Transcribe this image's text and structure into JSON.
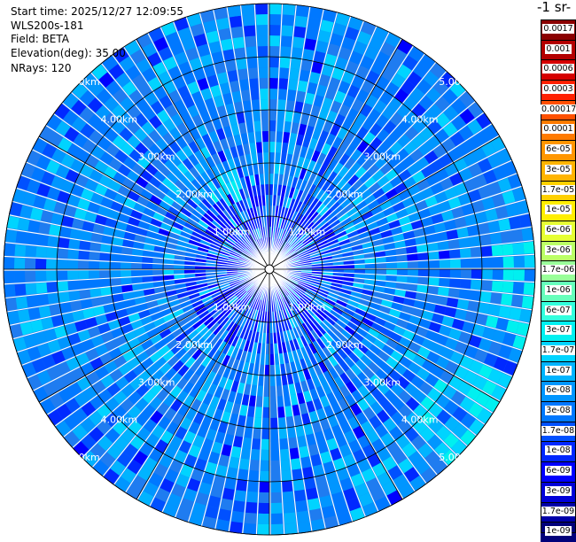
{
  "header": {
    "start_time": "Start time: 2025/12/27 12:09:55",
    "instrument": "WLS200s-181",
    "field": "Field: BETA",
    "elevation": "Elevation(deg): 35.00",
    "nrays": "NRays: 120"
  },
  "colorbar": {
    "unit_fragment": "-1 sr-",
    "labels": [
      "0.0017",
      "0.001",
      "0.0006",
      "0.0003",
      "0.00017",
      "0.0001",
      "6e-05",
      "3e-05",
      "1.7e-05",
      "1e-05",
      "6e-06",
      "3e-06",
      "1.7e-06",
      "1e-06",
      "6e-07",
      "3e-07",
      "1.7e-07",
      "1e-07",
      "6e-08",
      "3e-08",
      "1.7e-08",
      "1e-08",
      "6e-09",
      "3e-09",
      "1.7e-09",
      "1e-09"
    ],
    "colors": [
      "#8b0000",
      "#b30000",
      "#d60000",
      "#ff2000",
      "#ff5000",
      "#ff7a00",
      "#ff9600",
      "#ffb400",
      "#ffd000",
      "#ffee00",
      "#e6ff33",
      "#bbff66",
      "#99ff99",
      "#66ffbb",
      "#33ffdd",
      "#00f0f0",
      "#00d4ff",
      "#00b4ff",
      "#0096ff",
      "#0078ff",
      "#0050ff",
      "#0028ff",
      "#0000ff",
      "#0000d8",
      "#0000a8",
      "#00007a"
    ]
  },
  "chart_data": {
    "type": "heatmap",
    "projection": "polar PPI",
    "nrays": 120,
    "max_range_km": 5.0,
    "range_rings_km": [
      1.0,
      2.0,
      3.0,
      4.0,
      5.0
    ],
    "ring_labels": [
      "1.00km",
      "2.00km",
      "3.00km",
      "4.00km",
      "5.00km"
    ],
    "radial_lines_deg": [
      0,
      30,
      60,
      90,
      120,
      150,
      180,
      210,
      240,
      270,
      300,
      330
    ],
    "field": "BETA",
    "dominant_value_range": [
      "1e-08",
      "1.7e-07"
    ],
    "enhanced_sectors": [
      {
        "azimuth_deg": 125,
        "range_km": [
          3.8,
          5.0
        ],
        "approx_value": "1.7e-07"
      },
      {
        "azimuth_deg": 95,
        "range_km": [
          4.3,
          5.0
        ],
        "approx_value": "1e-07"
      },
      {
        "azimuth_deg": 330,
        "range_km": [
          1.5,
          2.0
        ],
        "approx_value": "1e-07"
      }
    ]
  }
}
